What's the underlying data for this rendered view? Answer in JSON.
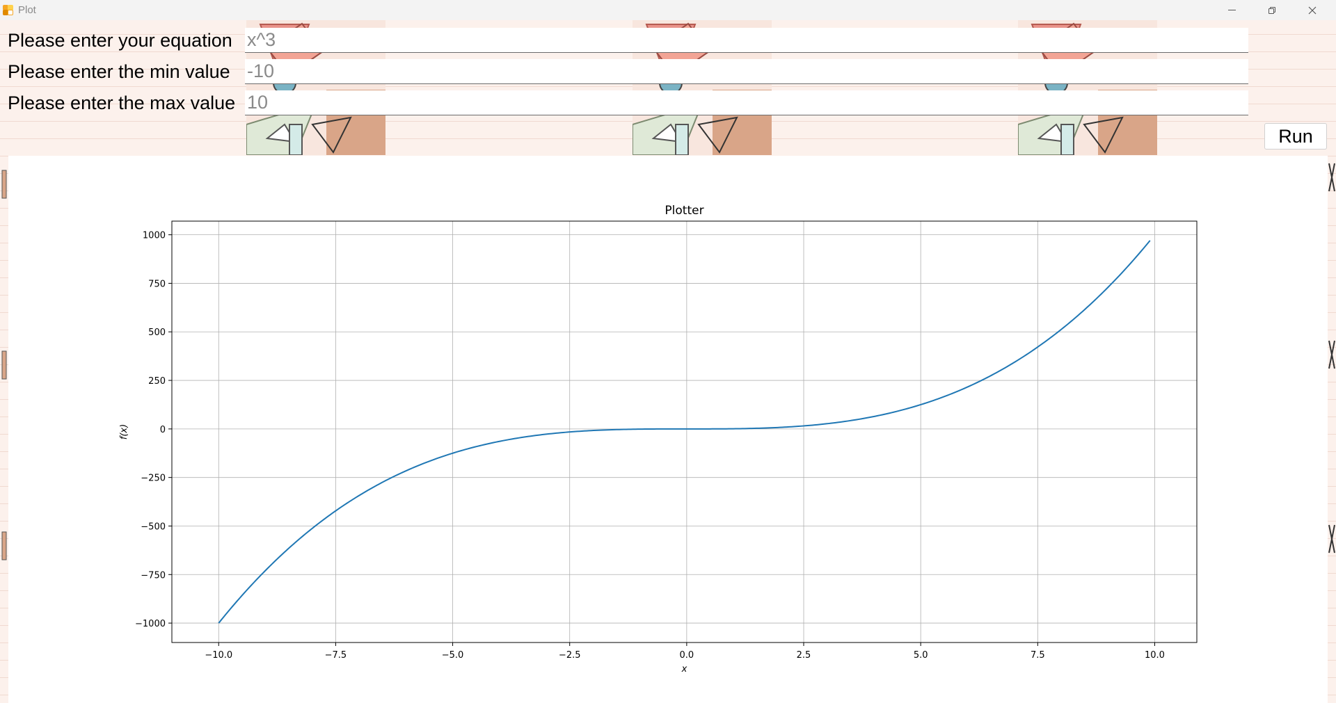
{
  "window": {
    "title": "Plot",
    "icon": "app-icon"
  },
  "form": {
    "equation_label": "Please enter your equation",
    "equation_placeholder": "x^3",
    "equation_value": "",
    "min_label": "Please enter the min value",
    "min_placeholder": "-10",
    "min_value": "",
    "max_label": "Please enter the max value",
    "max_placeholder": "10",
    "max_value": ""
  },
  "run_label": "Run",
  "chart_data": {
    "type": "line",
    "title": "Plotter",
    "xlabel": "x",
    "ylabel": "f(x)",
    "function": "x^3",
    "x_range": [
      -10,
      9.9
    ],
    "xlim": [
      -11,
      10.9
    ],
    "ylim": [
      -1099.97,
      1070.3
    ],
    "xticks": [
      -10.0,
      -7.5,
      -5.0,
      -2.5,
      0.0,
      2.5,
      5.0,
      7.5,
      10.0
    ],
    "xtick_labels": [
      "−10.0",
      "−7.5",
      "−5.0",
      "−2.5",
      "0.0",
      "2.5",
      "5.0",
      "7.5",
      "10.0"
    ],
    "yticks": [
      1000,
      750,
      500,
      250,
      0,
      -250,
      -500,
      -750,
      -1000
    ],
    "ytick_labels": [
      "1000",
      "750",
      "500",
      "250",
      "0",
      "−250",
      "−500",
      "−750",
      "−1000"
    ],
    "grid": true,
    "line_color": "#1f77b4"
  },
  "colors": {
    "background": "#fcf1ec",
    "accent": "#f5a623"
  }
}
